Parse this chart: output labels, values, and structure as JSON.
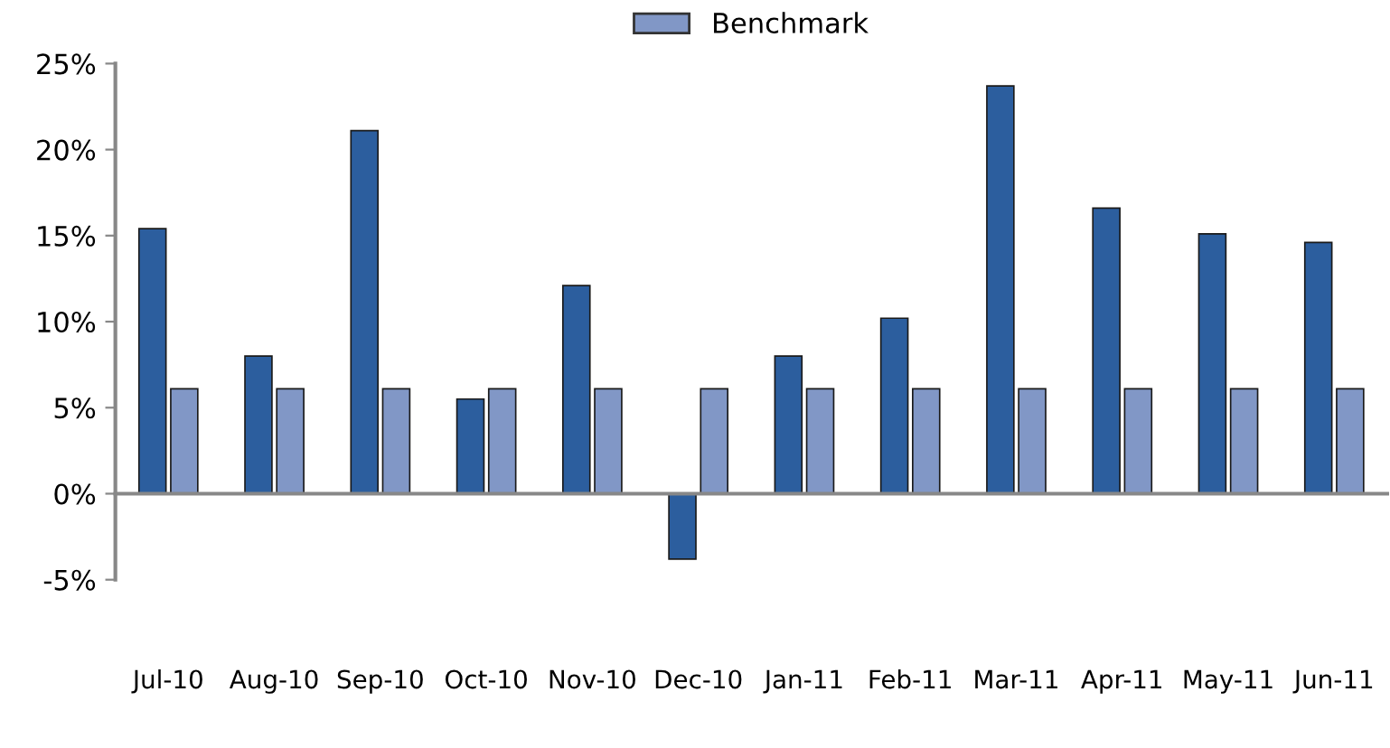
{
  "chart_data": {
    "type": "bar",
    "categories": [
      "Jul-10",
      "Aug-10",
      "Sep-10",
      "Oct-10",
      "Nov-10",
      "Dec-10",
      "Jan-11",
      "Feb-11",
      "Mar-11",
      "Apr-11",
      "May-11",
      "Jun-11"
    ],
    "series": [
      {
        "color": "#2c5e9e",
        "values": [
          15.4,
          8.0,
          21.1,
          5.5,
          12.1,
          -3.8,
          8.0,
          10.2,
          23.7,
          16.6,
          15.1,
          14.6
        ]
      },
      {
        "name": "Benchmark",
        "color": "#8197c6",
        "values": [
          6.1,
          6.1,
          6.1,
          6.1,
          6.1,
          6.1,
          6.1,
          6.1,
          6.1,
          6.1,
          6.1,
          6.1
        ]
      }
    ],
    "ylim": [
      -5,
      25
    ],
    "yticks": [
      {
        "value": -5,
        "label": "-5%"
      },
      {
        "value": 0,
        "label": "0%"
      },
      {
        "value": 5,
        "label": "5%"
      },
      {
        "value": 10,
        "label": "10%"
      },
      {
        "value": 15,
        "label": "15%"
      },
      {
        "value": 20,
        "label": "20%"
      },
      {
        "value": 25,
        "label": "25%"
      }
    ],
    "legend": "top"
  }
}
